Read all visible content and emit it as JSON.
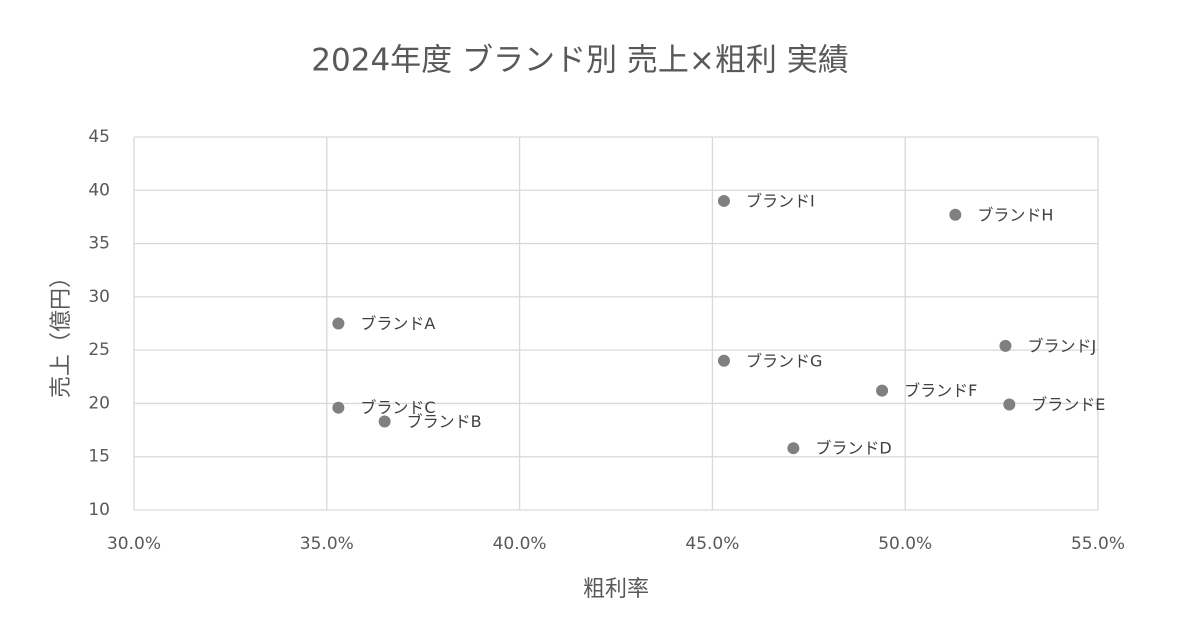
{
  "chart_data": {
    "type": "scatter",
    "title": "2024年度 ブランド別 売上×粗利 実績",
    "x_label": "粗利率",
    "y_label": "売上（億円）",
    "point_labels": [
      "ブランドA",
      "ブランドB",
      "ブランドC",
      "ブランドD",
      "ブランドE",
      "ブランドF",
      "ブランドG",
      "ブランドH",
      "ブランドI",
      "ブランドJ"
    ],
    "x": [
      35.3,
      36.5,
      35.3,
      47.1,
      52.7,
      49.4,
      45.3,
      51.3,
      45.3,
      52.6
    ],
    "values": [
      27.5,
      18.3,
      19.6,
      15.8,
      19.9,
      21.2,
      24.0,
      37.7,
      39.0,
      25.4
    ],
    "color": "#808080",
    "xlim": [
      30,
      55
    ],
    "xticks": [
      {
        "value": 30,
        "label": "30.0%"
      },
      {
        "value": 35,
        "label": "35.0%"
      },
      {
        "value": 40,
        "label": "40.0%"
      },
      {
        "value": 45,
        "label": "45.0%"
      },
      {
        "value": 50,
        "label": "50.0%"
      },
      {
        "value": 55,
        "label": "55.0%"
      }
    ],
    "ylim": [
      10,
      45
    ],
    "yticks": [
      10,
      15,
      20,
      25,
      30,
      35,
      40,
      45
    ],
    "grid": true
  }
}
